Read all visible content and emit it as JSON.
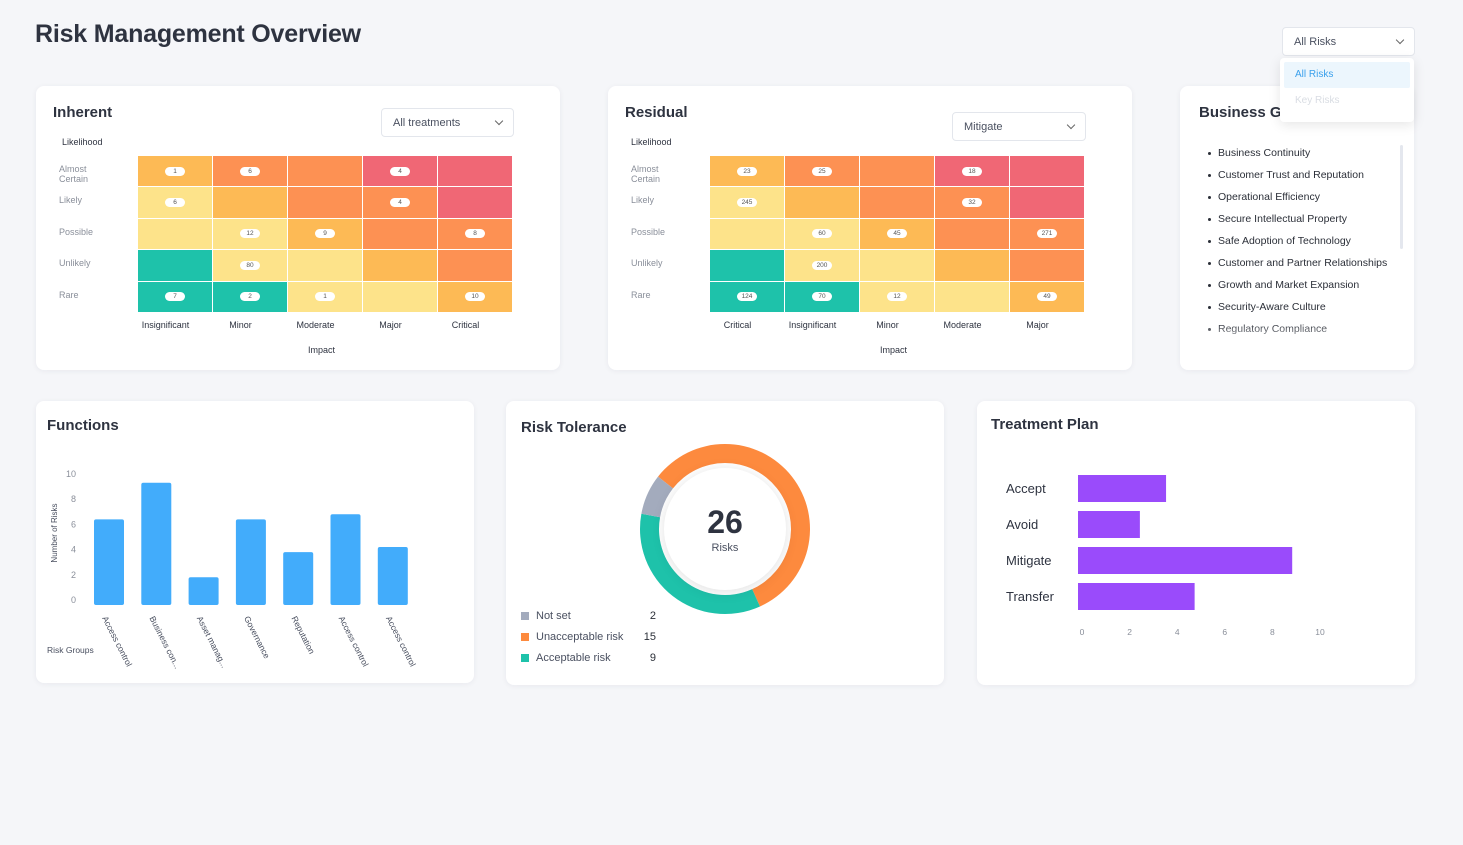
{
  "title": "Risk Management Overview",
  "filter": {
    "selected": "All Risks",
    "options": [
      "All Risks",
      "Key Risks"
    ]
  },
  "colors": {
    "green": "#1ec2aa",
    "yellow": "#fde38a",
    "amber": "#fdba55",
    "orange": "#fd9153",
    "red": "#f06775",
    "bar_blue": "#42acfb",
    "bar_purple": "#9a4bfb"
  },
  "inherent": {
    "title": "Inherent",
    "filter": "All treatments",
    "y_title": "Likelihood",
    "x_title": "Impact",
    "rows": [
      "Almost Certain",
      "Likely",
      "Possible",
      "Unlikely",
      "Rare"
    ],
    "cols": [
      "Insignificant",
      "Minor",
      "Moderate",
      "Major",
      "Critical"
    ],
    "colors": [
      [
        "amber",
        "orange",
        "orange",
        "red",
        "red"
      ],
      [
        "yellow",
        "amber",
        "orange",
        "orange",
        "red"
      ],
      [
        "yellow",
        "yellow",
        "amber",
        "orange",
        "orange"
      ],
      [
        "green",
        "yellow",
        "yellow",
        "amber",
        "orange"
      ],
      [
        "green",
        "green",
        "yellow",
        "yellow",
        "amber"
      ]
    ],
    "values": [
      [
        "1",
        "6",
        "",
        "4",
        ""
      ],
      [
        "6",
        "",
        "",
        "4",
        ""
      ],
      [
        "",
        "12",
        "9",
        "",
        "8"
      ],
      [
        "",
        "80",
        "",
        "",
        ""
      ],
      [
        "7",
        "2",
        "1",
        "",
        "10"
      ]
    ]
  },
  "residual": {
    "title": "Residual",
    "filter": "Mitigate",
    "y_title": "Likelihood",
    "x_title": "Impact",
    "rows": [
      "Almost Certain",
      "Likely",
      "Possible",
      "Unlikely",
      "Rare"
    ],
    "cols": [
      "Critical",
      "Insignificant",
      "Minor",
      "Moderate",
      "Major"
    ],
    "colors": [
      [
        "amber",
        "orange",
        "orange",
        "red",
        "red"
      ],
      [
        "yellow",
        "amber",
        "orange",
        "orange",
        "red"
      ],
      [
        "yellow",
        "yellow",
        "amber",
        "orange",
        "orange"
      ],
      [
        "green",
        "yellow",
        "yellow",
        "amber",
        "orange"
      ],
      [
        "green",
        "green",
        "yellow",
        "yellow",
        "amber"
      ]
    ],
    "values": [
      [
        "23",
        "25",
        "",
        "18",
        ""
      ],
      [
        "245",
        "",
        "",
        "32",
        ""
      ],
      [
        "",
        "60",
        "45",
        "",
        "271"
      ],
      [
        "",
        "200",
        "",
        "",
        ""
      ],
      [
        "124",
        "70",
        "12",
        "",
        "49"
      ]
    ]
  },
  "goals": {
    "title": "Business Goals",
    "items": [
      "Business Continuity",
      "Customer Trust and Reputation",
      "Operational Efficiency",
      "Secure Intellectual Property",
      "Safe Adoption of Technology",
      "Customer and Partner Relationships",
      "Growth and Market Expansion",
      "Security-Aware Culture",
      "Regulatory Compliance"
    ]
  },
  "functions": {
    "title": "Functions",
    "chart_data": {
      "type": "bar",
      "categories": [
        "Access control",
        "Business con...",
        "Asset manag...",
        "Governance",
        "Reputation",
        "Access control",
        "Access control"
      ],
      "values": [
        6.8,
        9.7,
        2.2,
        6.8,
        4.2,
        7.2,
        4.6
      ],
      "ylabel": "Number of Risks",
      "xlabel": "Risk Groups",
      "ylim": [
        0,
        10
      ],
      "yticks": [
        0,
        2,
        4,
        6,
        8,
        10
      ]
    }
  },
  "tolerance": {
    "title": "Risk Tolerance",
    "total": "26",
    "total_label": "Risks",
    "chart_data": {
      "type": "pie",
      "categories": [
        "Not set",
        "Unacceptable risk",
        "Acceptable risk"
      ],
      "values": [
        2,
        15,
        9
      ],
      "colors": [
        "#a3abbd",
        "#fd8a3e",
        "#1ec2aa"
      ]
    }
  },
  "treatment": {
    "title": "Treatment Plan",
    "chart_data": {
      "type": "bar",
      "orientation": "horizontal",
      "categories": [
        "Accept",
        "Avoid",
        "Mitigate",
        "Transfer"
      ],
      "values": [
        3.7,
        2.6,
        9,
        4.9
      ],
      "xlim": [
        0,
        10
      ],
      "xticks": [
        0,
        2,
        4,
        6,
        8,
        10
      ]
    }
  }
}
